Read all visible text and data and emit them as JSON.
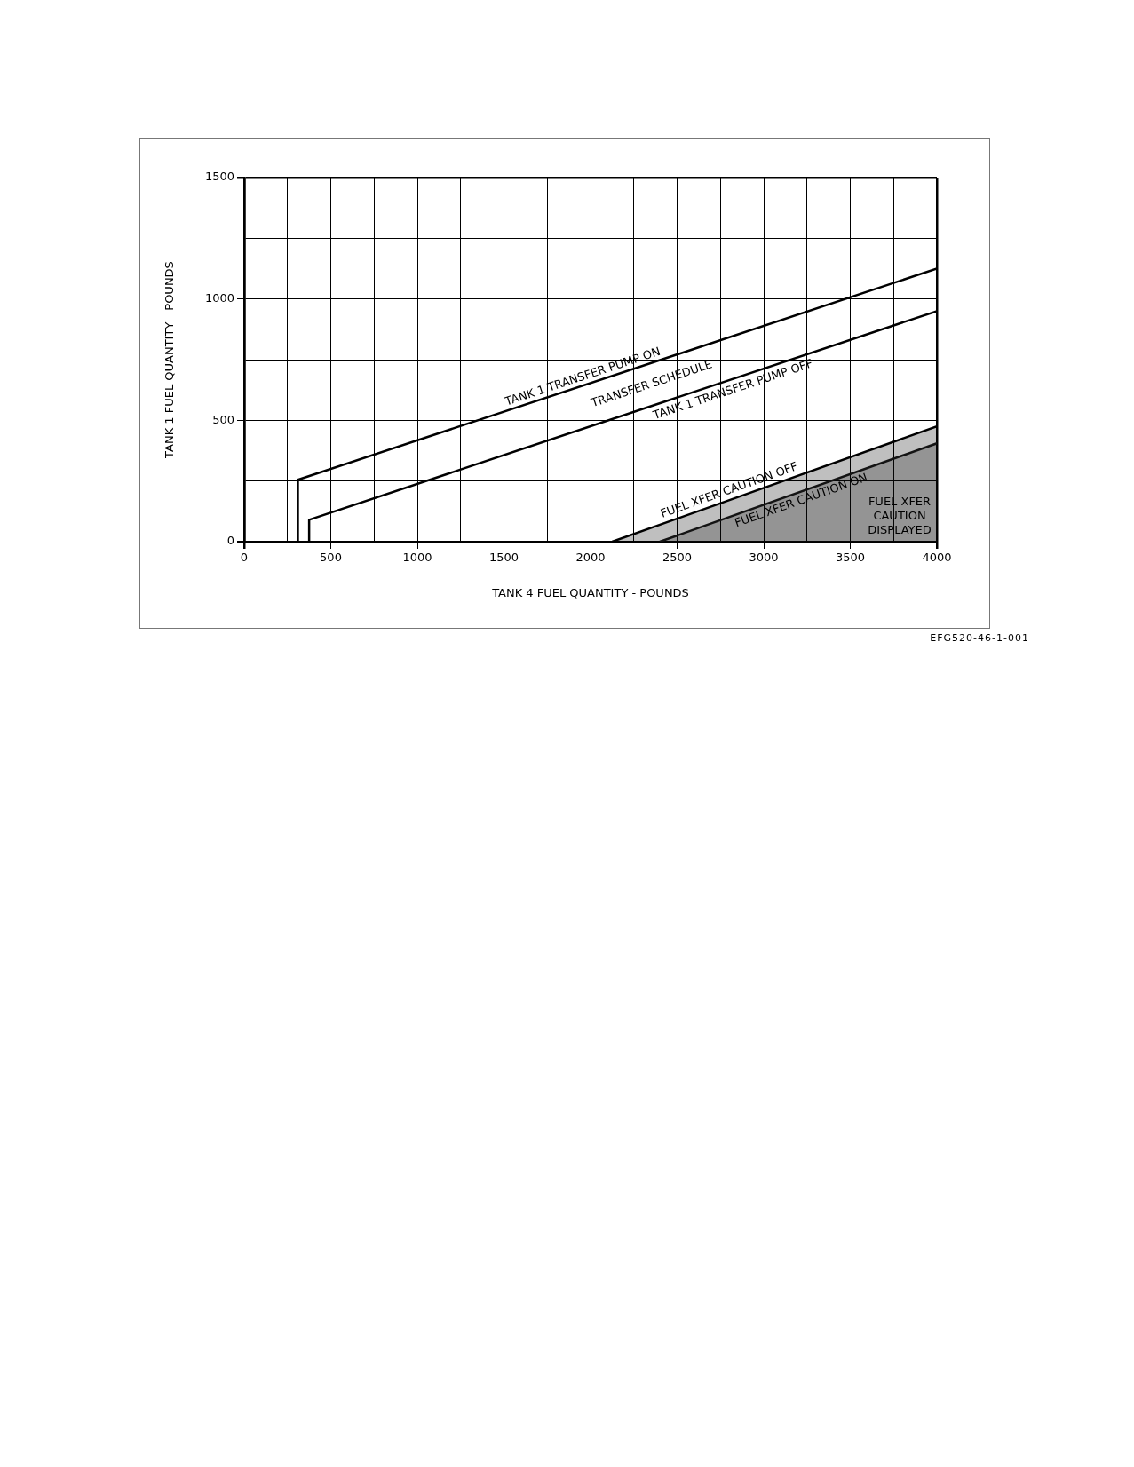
{
  "chart_data": {
    "type": "line",
    "xlabel": "TANK 4 FUEL QUANTITY - POUNDS",
    "ylabel": "TANK 1 FUEL QUANTITY - POUNDS",
    "xlim": [
      0,
      4000
    ],
    "ylim": [
      0,
      1500
    ],
    "xticks": [
      0,
      {
        "value": 250,
        "label": null
      },
      500,
      {
        "value": 750,
        "label": null
      },
      1000,
      {
        "value": 1250,
        "label": null
      },
      1500,
      {
        "value": 1750,
        "label": null
      },
      2000,
      {
        "value": 2250,
        "label": null
      },
      2500,
      {
        "value": 2750,
        "label": null
      },
      3000,
      {
        "value": 3250,
        "label": null
      },
      3500,
      {
        "value": 3750,
        "label": null
      },
      4000
    ],
    "yticks": [
      0,
      {
        "value": 250,
        "label": null
      },
      500,
      {
        "value": 750,
        "label": null
      },
      1000,
      {
        "value": 1250,
        "label": null
      },
      1500
    ],
    "grid": true,
    "legend": false,
    "marker": "none",
    "line_style": "solid",
    "series": [
      {
        "type": "line",
        "name": "TANK 1 TRANSFER PUMP ON",
        "color": "#000000",
        "x": [
          310,
          310,
          4000
        ],
        "values": [
          0,
          255,
          1125
        ]
      },
      {
        "type": "line",
        "name": "TANK 1 TRANSFER PUMP OFF",
        "color": "#000000",
        "x": [
          375,
          375,
          4000
        ],
        "values": [
          0,
          90,
          950
        ]
      },
      {
        "type": "area",
        "name": "FUEL XFER CAUTION OFF",
        "color": "#000000",
        "x": [
          2125,
          4000
        ],
        "values": [
          0,
          475
        ]
      },
      {
        "type": "area",
        "name": "FUEL XFER CAUTION ON",
        "color": "#1a1a1a",
        "x": [
          2400,
          4000
        ],
        "values": [
          0,
          405
        ]
      }
    ],
    "annotations": [
      "TRANSFER SCHEDULE",
      "FUEL XFER\nCAUTION\nDISPLAYED",
      "EFG520-46-1-001"
    ]
  }
}
